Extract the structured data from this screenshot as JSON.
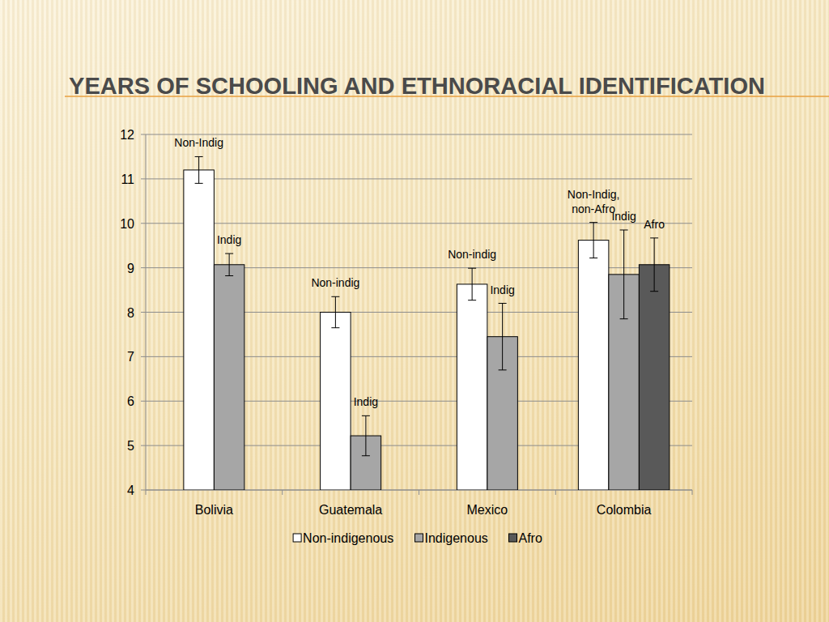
{
  "chart_data": {
    "type": "bar",
    "title": "YEARS OF SCHOOLING AND ETHNORACIAL IDENTIFICATION",
    "categories": [
      "Bolivia",
      "Guatemala",
      "Mexico",
      "Colombia"
    ],
    "series": [
      {
        "name": "Non-indigenous",
        "color": "#ffffff",
        "values": [
          11.2,
          8.0,
          8.63,
          9.62
        ],
        "errors": [
          0.3,
          0.35,
          0.36,
          0.4
        ],
        "labels": [
          "Non-Indig",
          "Non-indig",
          "Non-indig",
          "Non-Indig, non-Afro"
        ]
      },
      {
        "name": "Indigenous",
        "color": "#a6a6a6",
        "values": [
          9.07,
          5.22,
          7.45,
          8.85
        ],
        "errors": [
          0.25,
          0.45,
          0.75,
          1.0
        ],
        "labels": [
          "Indig",
          "Indig",
          "Indig",
          "Indig"
        ]
      },
      {
        "name": "Afro",
        "color": "#595959",
        "values": [
          null,
          null,
          null,
          9.07
        ],
        "errors": [
          null,
          null,
          null,
          0.6
        ],
        "labels": [
          null,
          null,
          null,
          "Afro"
        ]
      }
    ],
    "ylim": [
      4,
      12
    ],
    "yticks": [
      4,
      5,
      6,
      7,
      8,
      9,
      10,
      11,
      12
    ],
    "grid": true,
    "legend": "bottom"
  }
}
